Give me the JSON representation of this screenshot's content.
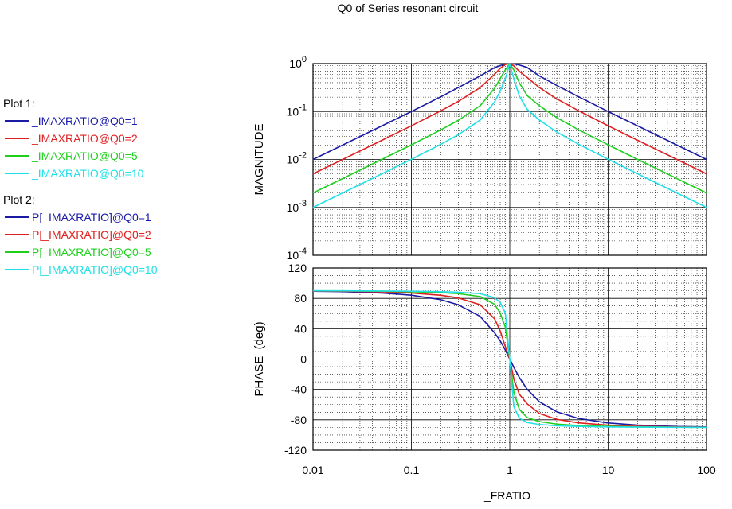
{
  "title": "Q0 of Series resonant circuit",
  "legend": {
    "groups": [
      {
        "title": "Plot 1:",
        "items": [
          {
            "label": "_IMAXRATIO@Q0=1",
            "color": "#1a1aa6"
          },
          {
            "label": "_IMAXRATIO@Q0=2",
            "color": "#e02020"
          },
          {
            "label": "_IMAXRATIO@Q0=5",
            "color": "#1ed01e"
          },
          {
            "label": "_IMAXRATIO@Q0=10",
            "color": "#20e0e8"
          }
        ]
      },
      {
        "title": "Plot 2:",
        "items": [
          {
            "label": "P[_IMAXRATIO]@Q0=1",
            "color": "#1a1aa6"
          },
          {
            "label": "P[_IMAXRATIO]@Q0=2",
            "color": "#e02020"
          },
          {
            "label": "P[_IMAXRATIO]@Q0=5",
            "color": "#1ed01e"
          },
          {
            "label": "P[_IMAXRATIO]@Q0=10",
            "color": "#20e0e8"
          }
        ]
      }
    ]
  },
  "chart_data": [
    {
      "type": "line",
      "ylabel": "MAGNITUDE",
      "xscale": "log",
      "yscale": "log",
      "xlim": [
        0.01,
        100
      ],
      "ylim": [
        0.0001,
        1
      ],
      "grid": true,
      "ytick_labels": [
        {
          "value": 1,
          "base": "10",
          "exp": "0"
        },
        {
          "value": 0.1,
          "base": "10",
          "exp": "-1"
        },
        {
          "value": 0.01,
          "base": "10",
          "exp": "-2"
        },
        {
          "value": 0.001,
          "base": "10",
          "exp": "-3"
        },
        {
          "value": 0.0001,
          "base": "10",
          "exp": "-4"
        }
      ],
      "x": [
        0.01,
        0.02,
        0.05,
        0.1,
        0.2,
        0.3,
        0.5,
        0.7,
        0.8,
        0.9,
        1.0,
        1.1,
        1.25,
        1.5,
        2,
        3,
        5,
        10,
        20,
        50,
        100
      ],
      "series": [
        {
          "name": "_IMAXRATIO@Q0=1",
          "color": "#1a1aa6",
          "values": [
            0.01,
            0.02,
            0.05,
            0.1,
            0.204,
            0.317,
            0.555,
            0.824,
            0.913,
            0.977,
            1.0,
            0.982,
            0.935,
            0.832,
            0.555,
            0.351,
            0.204,
            0.1,
            0.05,
            0.02,
            0.01
          ]
        },
        {
          "name": "_IMAXRATIO@Q0=2",
          "color": "#e02020",
          "values": [
            0.005,
            0.01,
            0.025,
            0.0504,
            0.104,
            0.163,
            0.316,
            0.599,
            0.798,
            0.958,
            1.0,
            0.893,
            0.692,
            0.514,
            0.316,
            0.184,
            0.104,
            0.0504,
            0.025,
            0.01,
            0.005
          ]
        },
        {
          "name": "_IMAXRATIO@Q0=5",
          "color": "#1ed01e",
          "values": [
            0.002,
            0.004,
            0.01,
            0.0202,
            0.0416,
            0.0657,
            0.132,
            0.305,
            0.49,
            0.739,
            1.0,
            0.732,
            0.399,
            0.216,
            0.132,
            0.0746,
            0.0416,
            0.0202,
            0.01,
            0.004,
            0.002
          ]
        },
        {
          "name": "_IMAXRATIO@Q0=10",
          "color": "#20e0e8",
          "values": [
            0.001,
            0.002,
            0.005,
            0.0101,
            0.0208,
            0.0329,
            0.0665,
            0.158,
            0.268,
            0.484,
            1.0,
            0.48,
            0.212,
            0.111,
            0.0665,
            0.0374,
            0.0208,
            0.0101,
            0.005,
            0.002,
            0.001
          ]
        }
      ]
    },
    {
      "type": "line",
      "xlabel": "_FRATIO",
      "ylabel": "PHASE  (deg)",
      "xscale": "log",
      "xlim": [
        0.01,
        100
      ],
      "ylim": [
        -120,
        120
      ],
      "grid": true,
      "yticks": [
        120,
        80,
        40,
        0,
        -40,
        -80,
        -120
      ],
      "xticks": [
        {
          "value": 0.01,
          "label": "0.01"
        },
        {
          "value": 0.1,
          "label": "0.1"
        },
        {
          "value": 1,
          "label": "1"
        },
        {
          "value": 10,
          "label": "10"
        },
        {
          "value": 100,
          "label": "100"
        }
      ],
      "x": [
        0.01,
        0.02,
        0.05,
        0.1,
        0.2,
        0.3,
        0.5,
        0.7,
        0.8,
        0.9,
        1.0,
        1.1,
        1.25,
        1.5,
        2,
        3,
        5,
        10,
        20,
        50,
        100
      ],
      "series": [
        {
          "name": "P[_IMAXRATIO]@Q0=1",
          "color": "#1a1aa6",
          "values": [
            89.4,
            88.9,
            87.1,
            84.2,
            78.2,
            71.5,
            56.3,
            34.6,
            24.0,
            12.0,
            0,
            -10.9,
            -24.2,
            -39.8,
            -56.3,
            -69.4,
            -78.2,
            -84.2,
            -87.1,
            -88.9,
            -89.4
          ]
        },
        {
          "name": "P[_IMAXRATIO]@Q0=2",
          "color": "#e02020",
          "values": [
            89.7,
            89.4,
            88.6,
            87.1,
            84.0,
            80.6,
            71.6,
            53.2,
            37.0,
            16.8,
            0,
            -26.3,
            -46.3,
            -59.0,
            -71.6,
            -79.4,
            -84.0,
            -87.1,
            -88.6,
            -89.4,
            -89.7
          ]
        },
        {
          "name": "P[_IMAXRATIO]@Q0=5",
          "color": "#1ed01e",
          "values": [
            89.9,
            89.8,
            89.4,
            88.8,
            87.6,
            86.2,
            82.4,
            72.2,
            60.6,
            42.3,
            0,
            -43.9,
            -66.2,
            -77.0,
            -82.4,
            -85.7,
            -87.6,
            -88.8,
            -89.4,
            -89.8,
            -89.9
          ]
        },
        {
          "name": "P[_IMAXRATIO]@Q0=10",
          "color": "#20e0e8",
          "values": [
            89.9,
            89.9,
            89.7,
            89.4,
            88.8,
            88.1,
            86.2,
            80.9,
            74.5,
            61.0,
            0,
            -62.8,
            -77.8,
            -83.6,
            -86.2,
            -87.9,
            -88.8,
            -89.4,
            -89.7,
            -89.9,
            -89.9
          ]
        }
      ]
    }
  ]
}
